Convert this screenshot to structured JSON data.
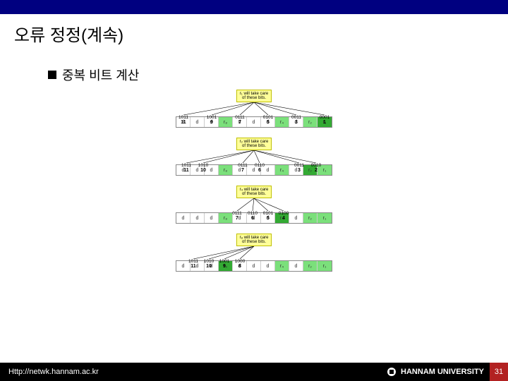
{
  "title": "오류 정정(계속)",
  "subtitle": "중복 비트 계산",
  "footer": {
    "url": "Http://netwk.hannam.ac.kr",
    "org": "HANNAM  UNIVERSITY",
    "page": "31"
  },
  "colors": {
    "topbar": "#000080",
    "rcell": "#7be07b",
    "target": "#33aa33",
    "tagbg": "#ffff99"
  },
  "diagrams": [
    {
      "tag": "r₁ will take care\nof these bits.",
      "positions": [
        {
          "bin": "1011",
          "dec": "11"
        },
        {
          "bin": "1001",
          "dec": "9"
        },
        {
          "bin": "0111",
          "dec": "7"
        },
        {
          "bin": "0101",
          "dec": "5"
        },
        {
          "bin": "0011",
          "dec": "3"
        },
        {
          "bin": "0001",
          "dec": "1"
        }
      ],
      "cells": [
        {
          "t": "d",
          "c": "n"
        },
        {
          "t": "d",
          "c": "n"
        },
        {
          "t": "d",
          "c": "n"
        },
        {
          "t": "r₈",
          "c": "r"
        },
        {
          "t": "d",
          "c": "n"
        },
        {
          "t": "d",
          "c": "n"
        },
        {
          "t": "d",
          "c": "n"
        },
        {
          "t": "r₄",
          "c": "r"
        },
        {
          "t": "d",
          "c": "n"
        },
        {
          "t": "r₂",
          "c": "r"
        },
        {
          "t": "r₁",
          "c": "target"
        }
      ],
      "posLayout": "wide"
    },
    {
      "tag": "r₂ will take care\nof these bits.",
      "positions": [
        {
          "bin": "1011",
          "dec": "11"
        },
        {
          "bin": "1010",
          "dec": "10"
        },
        {
          "bin": "0111",
          "dec": "7"
        },
        {
          "bin": "0110",
          "dec": "6"
        },
        {
          "bin": "0011",
          "dec": "3"
        },
        {
          "bin": "0010",
          "dec": "2"
        }
      ],
      "cells": [
        {
          "t": "d",
          "c": "n"
        },
        {
          "t": "d",
          "c": "n"
        },
        {
          "t": "d",
          "c": "n"
        },
        {
          "t": "r₈",
          "c": "r"
        },
        {
          "t": "d",
          "c": "n"
        },
        {
          "t": "d",
          "c": "n"
        },
        {
          "t": "d",
          "c": "n"
        },
        {
          "t": "r₄",
          "c": "r"
        },
        {
          "t": "d",
          "c": "n"
        },
        {
          "t": "r₂",
          "c": "target"
        },
        {
          "t": "r₁",
          "c": "r"
        }
      ],
      "posLayout": "pair3"
    },
    {
      "tag": "r₄ will take care\nof these bits.",
      "positions": [
        {
          "bin": "0111",
          "dec": "7"
        },
        {
          "bin": "0110",
          "dec": "6"
        },
        {
          "bin": "0101",
          "dec": "5"
        },
        {
          "bin": "0100",
          "dec": "4"
        }
      ],
      "cells": [
        {
          "t": "d",
          "c": "n"
        },
        {
          "t": "d",
          "c": "n"
        },
        {
          "t": "d",
          "c": "n"
        },
        {
          "t": "r₈",
          "c": "r"
        },
        {
          "t": "d",
          "c": "n"
        },
        {
          "t": "d",
          "c": "n"
        },
        {
          "t": "d",
          "c": "n"
        },
        {
          "t": "r₄",
          "c": "target"
        },
        {
          "t": "d",
          "c": "n"
        },
        {
          "t": "r₂",
          "c": "r"
        },
        {
          "t": "r₁",
          "c": "r"
        }
      ],
      "posLayout": "four"
    },
    {
      "tag": "r₈ will take care\nof these bits.",
      "positions": [
        {
          "bin": "1011",
          "dec": "11"
        },
        {
          "bin": "1010",
          "dec": "10"
        },
        {
          "bin": "1001",
          "dec": "9"
        },
        {
          "bin": "1000",
          "dec": "8"
        }
      ],
      "cells": [
        {
          "t": "d",
          "c": "n"
        },
        {
          "t": "d",
          "c": "n"
        },
        {
          "t": "d",
          "c": "n"
        },
        {
          "t": "r₈",
          "c": "target"
        },
        {
          "t": "d",
          "c": "n"
        },
        {
          "t": "d",
          "c": "n"
        },
        {
          "t": "d",
          "c": "n"
        },
        {
          "t": "r₄",
          "c": "r"
        },
        {
          "t": "d",
          "c": "n"
        },
        {
          "t": "r₂",
          "c": "r"
        },
        {
          "t": "r₁",
          "c": "r"
        }
      ],
      "posLayout": "fourleft"
    }
  ]
}
